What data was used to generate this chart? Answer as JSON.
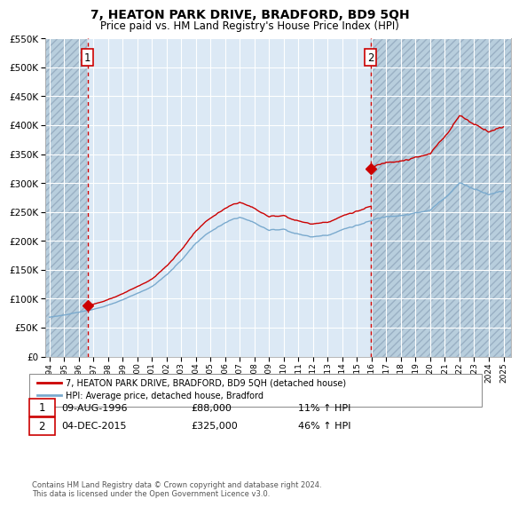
{
  "title": "7, HEATON PARK DRIVE, BRADFORD, BD9 5QH",
  "subtitle": "Price paid vs. HM Land Registry's House Price Index (HPI)",
  "legend_line1": "7, HEATON PARK DRIVE, BRADFORD, BD9 5QH (detached house)",
  "legend_line2": "HPI: Average price, detached house, Bradford",
  "sale1_date": "09-AUG-1996",
  "sale1_price": "£88,000",
  "sale1_hpi": "11% ↑ HPI",
  "sale1_year": 1996.6,
  "sale1_value": 88000,
  "sale2_date": "04-DEC-2015",
  "sale2_price": "£325,000",
  "sale2_hpi": "46% ↑ HPI",
  "sale2_year": 2015.92,
  "sale2_value": 325000,
  "ylim": [
    0,
    550000
  ],
  "yticks": [
    0,
    50000,
    100000,
    150000,
    200000,
    250000,
    300000,
    350000,
    400000,
    450000,
    500000,
    550000
  ],
  "xlim_start": 1993.7,
  "xlim_end": 2025.5,
  "hatch_left_end": 1996.55,
  "hatch_right_start": 2015.92,
  "bg_color": "#dce9f5",
  "hatch_color": "#b8cedd",
  "grid_color": "#ffffff",
  "red_line_color": "#cc0000",
  "blue_line_color": "#7aaace",
  "footnote": "Contains HM Land Registry data © Crown copyright and database right 2024.\nThis data is licensed under the Open Government Licence v3.0."
}
